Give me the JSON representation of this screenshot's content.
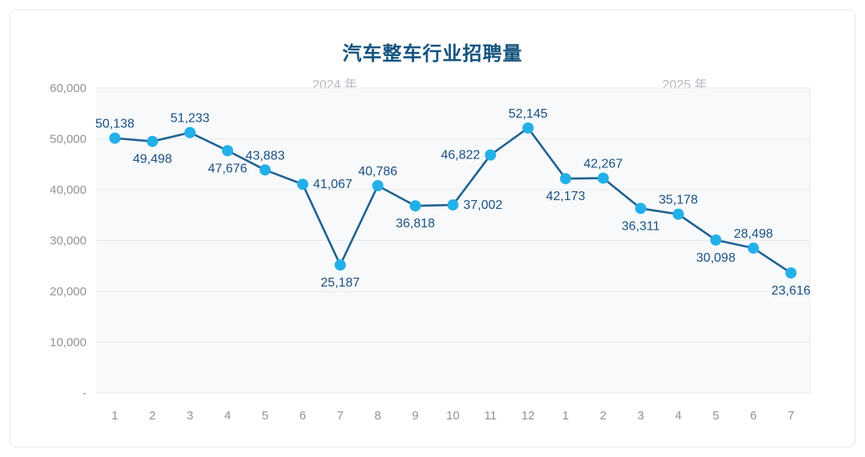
{
  "chart_data": {
    "type": "line",
    "title": "汽车整车行业招聘量",
    "year_labels": [
      "2024 年",
      "2025 年"
    ],
    "x_tick_labels": [
      "1",
      "2",
      "3",
      "4",
      "5",
      "6",
      "7",
      "8",
      "9",
      "10",
      "11",
      "12",
      "1",
      "2",
      "3",
      "4",
      "5",
      "6",
      "7"
    ],
    "values": [
      50138,
      49498,
      51233,
      47676,
      43883,
      41067,
      25187,
      40786,
      36818,
      37002,
      46822,
      52145,
      42173,
      42267,
      36311,
      35178,
      30098,
      28498,
      23616
    ],
    "point_labels": [
      "50,138",
      "49,498",
      "51,233",
      "47,676",
      "43,883",
      "41,067",
      "25,187",
      "40,786",
      "36,818",
      "37,002",
      "46,822",
      "52,145",
      "42,173",
      "42,267",
      "36,311",
      "35,178",
      "30,098",
      "28,498",
      "23,616"
    ],
    "label_positions": [
      "above",
      "below",
      "above",
      "below",
      "above",
      "right",
      "below",
      "above",
      "below",
      "right",
      "left",
      "above",
      "below",
      "above",
      "below",
      "above",
      "below",
      "above",
      "below"
    ],
    "ylim": [
      0,
      60000
    ],
    "y_tick_values": [
      60000,
      50000,
      40000,
      30000,
      20000,
      10000,
      0
    ],
    "y_tick_labels": [
      "60,000",
      "50,000",
      "40,000",
      "30,000",
      "20,000",
      "10,000",
      "-"
    ],
    "grid": true,
    "legend": "none",
    "colors": {
      "title": "#14537f",
      "line": "#20618f",
      "marker": "#23b0e8",
      "point_label": "#1b5080",
      "axis_text": "#8d9299",
      "year_text": "#b5b9bf",
      "grid_line": "#e7e9ec",
      "plot_bg": "#f7f9fb",
      "card_border": "#e5e7ea"
    }
  }
}
